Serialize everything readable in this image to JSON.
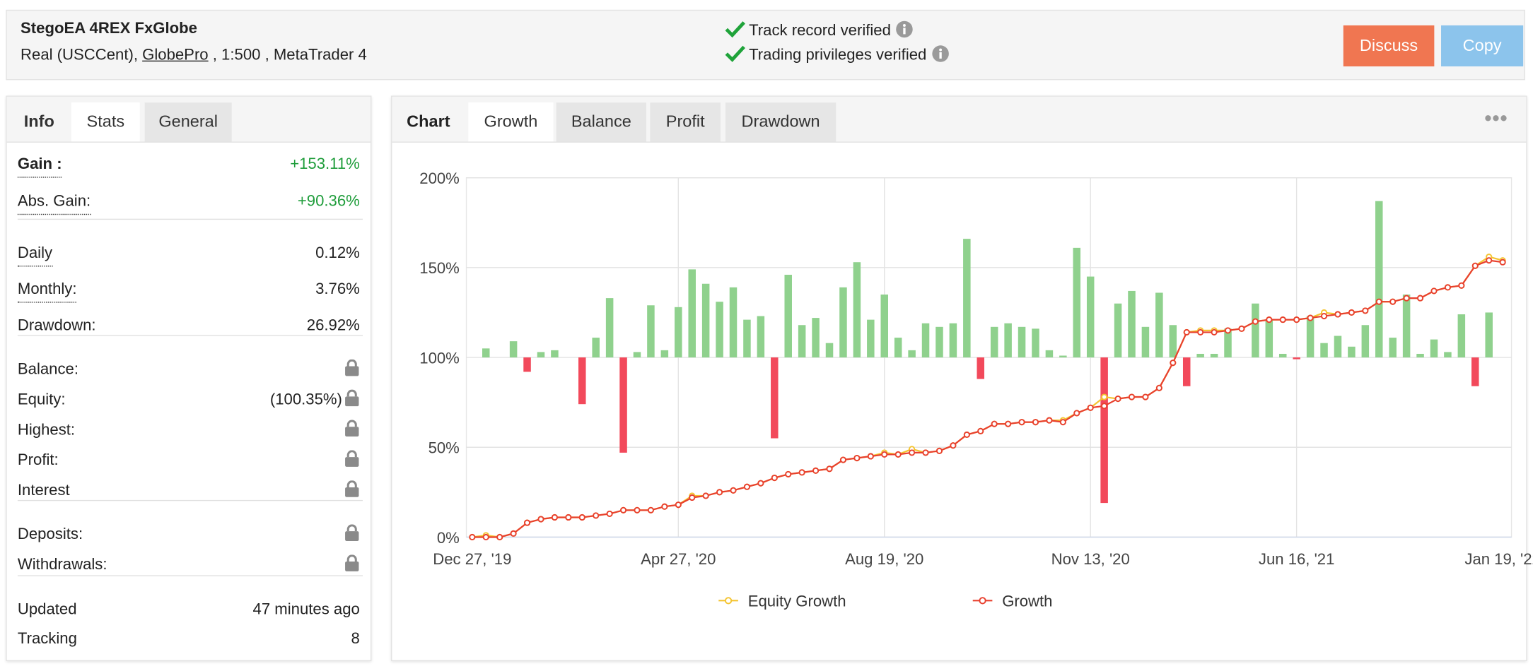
{
  "header": {
    "title": "StegoEA 4REX FxGlobe",
    "account": "Real (USCCent),",
    "broker": "GlobePro",
    "details": ", 1:500 , MetaTrader 4",
    "verifications": [
      "Track record verified",
      "Trading privileges verified"
    ],
    "buttons": [
      "Discuss",
      "Copy"
    ]
  },
  "left_tabs": {
    "tabs": [
      "Info",
      "Stats",
      "General"
    ],
    "active": 1
  },
  "stats": [
    [
      {
        "label": "Gain :",
        "value": "+153.11%",
        "bold": true,
        "underline": true,
        "color": "#1f9d3b"
      },
      {
        "label": "Abs. Gain:",
        "value": "+90.36%",
        "underline": true,
        "color": "#1f9d3b"
      }
    ],
    [
      {
        "label": "Daily",
        "value": "0.12%",
        "underline": true
      },
      {
        "label": "Monthly:",
        "value": "3.76%",
        "underline": true
      },
      {
        "label": "Drawdown:",
        "value": "26.92%"
      }
    ],
    [
      {
        "label": "Balance:",
        "locked": true
      },
      {
        "label": "Equity:",
        "value": "(100.35%)",
        "locked": true
      },
      {
        "label": "Highest:",
        "locked": true
      },
      {
        "label": "Profit:",
        "locked": true
      },
      {
        "label": "Interest",
        "locked": true
      }
    ],
    [
      {
        "label": "Deposits:",
        "locked": true
      },
      {
        "label": "Withdrawals:",
        "locked": true
      }
    ],
    [
      {
        "label": "Updated",
        "value": "47 minutes ago"
      },
      {
        "label": "Tracking",
        "value": "8"
      }
    ]
  ],
  "chart_tabs": {
    "label": "Chart",
    "tabs": [
      "Growth",
      "Balance",
      "Profit",
      "Drawdown"
    ],
    "active": 0
  },
  "chart_data": {
    "type": "line",
    "categories": [
      "Dec 27, '19",
      null,
      null,
      null,
      null,
      null,
      null,
      null,
      null,
      null,
      null,
      null,
      null,
      null,
      null,
      "Apr 27, '20",
      null,
      null,
      null,
      null,
      null,
      null,
      null,
      null,
      null,
      null,
      null,
      null,
      null,
      null,
      "Aug 19, '20",
      null,
      null,
      null,
      null,
      null,
      null,
      null,
      null,
      null,
      null,
      null,
      null,
      null,
      null,
      "Nov 13, '20",
      null,
      null,
      null,
      null,
      null,
      null,
      null,
      null,
      null,
      null,
      null,
      null,
      null,
      null,
      "Jun 16, '21",
      null,
      null,
      null,
      null,
      null,
      null,
      null,
      null,
      null,
      null,
      null,
      null,
      null,
      null,
      "Jan 19, '22"
    ],
    "ylim": [
      0,
      200
    ],
    "yticks": [
      {
        "value": 0,
        "label": "0%"
      },
      {
        "value": 50,
        "label": "50%"
      },
      {
        "value": 100,
        "label": "100%"
      },
      {
        "value": 150,
        "label": "150%"
      },
      {
        "value": 200,
        "label": "200%"
      }
    ],
    "grid": true,
    "series": [
      {
        "name": "Equity Growth",
        "color": "#f4c431",
        "values": [
          0,
          1,
          0,
          2,
          8,
          10,
          11,
          11,
          11,
          12,
          13,
          15,
          15,
          15,
          17,
          18,
          23,
          23,
          25,
          26,
          28,
          30,
          33,
          35,
          36,
          37,
          38,
          43,
          44,
          45,
          47,
          46,
          49,
          47,
          48,
          51,
          57,
          59,
          63,
          63,
          64,
          64,
          65,
          65,
          69,
          72,
          78,
          77,
          78,
          78,
          83,
          97,
          114,
          115,
          115,
          115,
          116,
          120,
          121,
          121,
          121,
          122,
          125,
          124,
          125,
          126,
          131,
          131,
          133,
          133,
          137,
          139,
          140,
          151,
          156,
          154
        ]
      },
      {
        "name": "Growth",
        "color": "#e8402e",
        "values": [
          0,
          0,
          0,
          2,
          8,
          10,
          11,
          11,
          11,
          12,
          13,
          15,
          15,
          15,
          17,
          18,
          22,
          23,
          25,
          26,
          28,
          30,
          33,
          35,
          36,
          37,
          38,
          43,
          44,
          45,
          46,
          46,
          47,
          47,
          48,
          51,
          57,
          59,
          63,
          63,
          64,
          64,
          65,
          64,
          69,
          72,
          73,
          77,
          78,
          78,
          83,
          97,
          114,
          114,
          114,
          115,
          116,
          120,
          121,
          121,
          121,
          122,
          123,
          124,
          125,
          126,
          131,
          131,
          133,
          133,
          137,
          139,
          140,
          151,
          154,
          153
        ]
      }
    ],
    "bars": {
      "base": 100,
      "color": "#8fd18d",
      "negative_color": "#f2495b",
      "values": [
        null,
        105,
        null,
        109,
        92,
        103,
        104,
        null,
        74,
        111,
        133,
        47,
        103,
        129,
        104,
        128,
        149,
        141,
        131,
        139,
        121,
        123,
        55,
        146,
        118,
        122,
        108,
        139,
        153,
        121,
        135,
        111,
        104,
        119,
        117,
        119,
        166,
        88,
        117,
        119,
        117,
        116,
        104,
        101,
        161,
        145,
        19,
        130,
        137,
        117,
        136,
        118,
        84,
        102,
        102,
        116,
        null,
        130,
        121,
        102,
        99,
        123,
        108,
        112,
        106,
        118,
        187,
        111,
        135,
        102,
        110,
        103,
        124,
        84,
        125,
        null
      ]
    },
    "legend": "bottom"
  }
}
